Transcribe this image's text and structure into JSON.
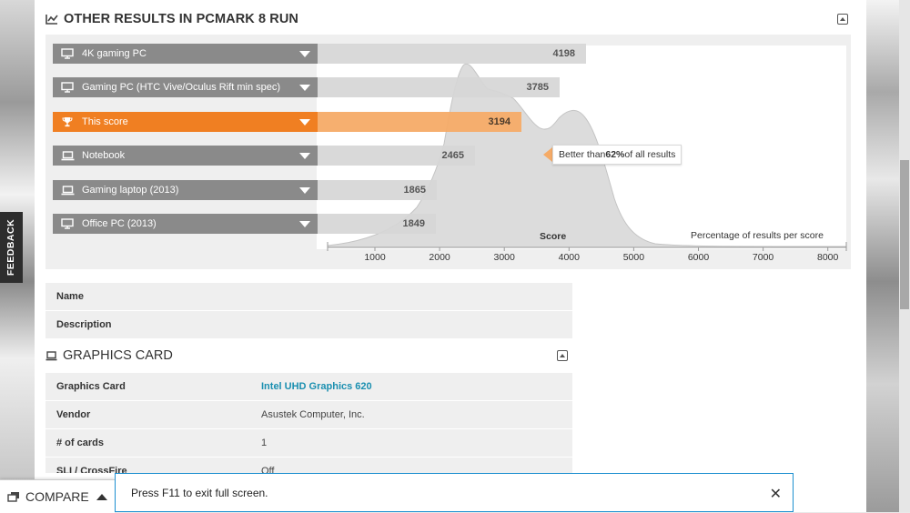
{
  "section": {
    "title": "OTHER RESULTS IN PCMARK 8 RUN"
  },
  "bars": [
    {
      "label": "4K gaming PC",
      "score": 4198,
      "icon": "desktop-icon",
      "highlight": false
    },
    {
      "label": "Gaming PC (HTC Vive/Oculus Rift min spec)",
      "score": 3785,
      "icon": "desktop-icon",
      "highlight": false
    },
    {
      "label": "This score",
      "score": 3194,
      "icon": "trophy-icon",
      "highlight": true
    },
    {
      "label": "Notebook",
      "score": 2465,
      "icon": "laptop-icon",
      "highlight": false
    },
    {
      "label": "Gaming laptop (2013)",
      "score": 1865,
      "icon": "laptop-icon",
      "highlight": false
    },
    {
      "label": "Office PC (2013)",
      "score": 1849,
      "icon": "desktop-icon",
      "highlight": false
    }
  ],
  "callout": {
    "prefix": "Better than ",
    "percent": "62%",
    "suffix": " of all results"
  },
  "chart": {
    "xlabel": "Score",
    "ylabel": "Percentage of results per score",
    "ticks": [
      "1000",
      "2000",
      "3000",
      "4000",
      "5000",
      "6000",
      "7000",
      "8000"
    ]
  },
  "info_rows": [
    {
      "key": "Name",
      "value": ""
    },
    {
      "key": "Description",
      "value": ""
    }
  ],
  "graphics_card": {
    "title": "GRAPHICS CARD",
    "rows": [
      {
        "key": "Graphics Card",
        "value": "Intel UHD Graphics 620"
      },
      {
        "key": "Vendor",
        "value": "Asustek Computer, Inc."
      },
      {
        "key": "# of cards",
        "value": "1"
      },
      {
        "key": "SLI / CrossFire",
        "value": "Off"
      }
    ]
  },
  "compare": {
    "label": "COMPARE"
  },
  "feedback": {
    "label": "FEEDBACK"
  },
  "toast": {
    "message": "Press F11 to exit full screen."
  },
  "colors": {
    "highlight": "#f07f22",
    "link": "#1a8fb0",
    "toast_border": "#1c8fd0"
  }
}
